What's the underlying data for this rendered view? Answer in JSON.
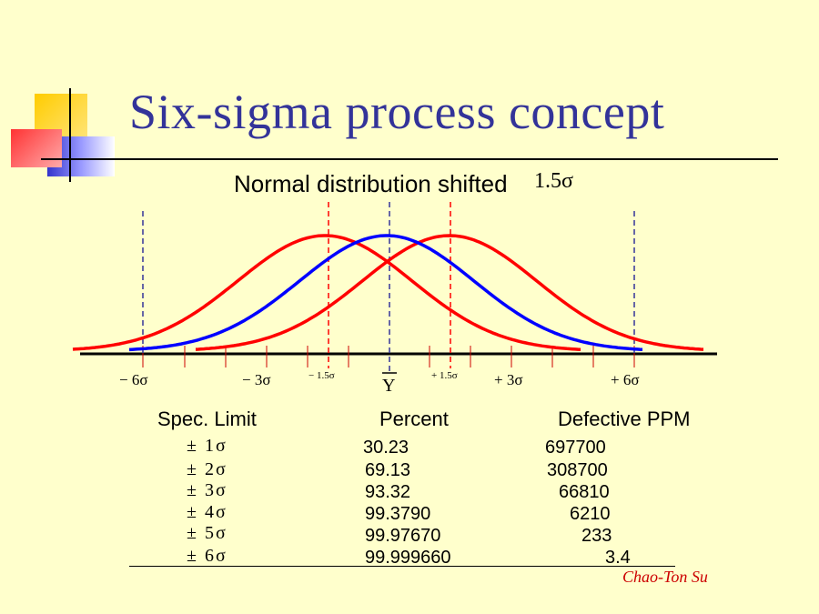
{
  "slide": {
    "title": "Six-sigma process concept",
    "subtitle": "Normal distribution shifted",
    "subtitle_shift": "1.5σ",
    "author": "Chao-Ton Su"
  },
  "colors": {
    "background": "#FFFFCC",
    "title": "#333399",
    "shifted_curves": "#FF0000",
    "center_curve": "#0000FF",
    "author": "#CC0000"
  },
  "axis_labels": {
    "minus6": "− 6σ",
    "minus3": "− 3σ",
    "minus1_5": "− 1.5σ",
    "mean": "Y",
    "plus1_5": "+ 1.5σ",
    "plus3": "+ 3σ",
    "plus6": "+ 6σ"
  },
  "table": {
    "headers": [
      "Spec. Limit",
      "Percent",
      "Defective PPM"
    ],
    "rows": [
      {
        "limit": "± 1σ",
        "percent": "30.23",
        "ppm": "697700"
      },
      {
        "limit": "± 2σ",
        "percent": "69.13",
        "ppm": "308700"
      },
      {
        "limit": "± 3σ",
        "percent": "93.32",
        "ppm": "66810"
      },
      {
        "limit": "± 4σ",
        "percent": "99.3790",
        "ppm": "6210"
      },
      {
        "limit": "± 5σ",
        "percent": "99.97670",
        "ppm": "233"
      },
      {
        "limit": "± 6σ",
        "percent": "99.999660",
        "ppm": "3.4"
      }
    ]
  }
}
